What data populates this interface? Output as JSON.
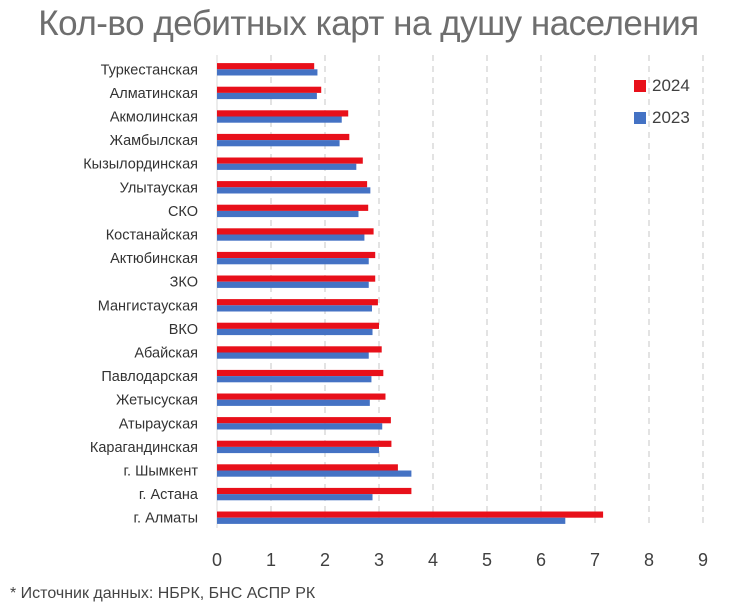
{
  "chart_data": {
    "type": "bar",
    "orientation": "horizontal",
    "title": "Кол-во дебитных карт на душу населения",
    "categories": [
      "Туркестанская",
      "Алматинская",
      "Акмолинская",
      "Жамбылская",
      "Кызылординская",
      "Улытауская",
      "СКО",
      "Костанайская",
      "Актюбинская",
      "ЗКО",
      "Мангистауская",
      "ВКО",
      "Абайская",
      "Павлодарская",
      "Жетысуская",
      "Атырауская",
      "Карагандинская",
      "г. Шымкент",
      "г. Астана",
      "г. Алматы"
    ],
    "series": [
      {
        "name": "2024",
        "color": "#e8101a",
        "values": [
          1.8,
          1.93,
          2.43,
          2.45,
          2.7,
          2.78,
          2.8,
          2.9,
          2.93,
          2.93,
          2.98,
          3.0,
          3.05,
          3.08,
          3.12,
          3.22,
          3.23,
          3.35,
          3.6,
          7.15
        ]
      },
      {
        "name": "2023",
        "color": "#4472c4",
        "values": [
          1.86,
          1.85,
          2.31,
          2.27,
          2.58,
          2.84,
          2.62,
          2.73,
          2.81,
          2.81,
          2.87,
          2.88,
          2.81,
          2.86,
          2.83,
          3.06,
          3.0,
          3.6,
          2.88,
          6.45
        ]
      }
    ],
    "xlim": [
      0,
      9
    ],
    "xticks": [
      "0",
      "1",
      "2",
      "3",
      "4",
      "5",
      "6",
      "7",
      "8",
      "9"
    ],
    "grid": "vertical dashed",
    "legend_position": "top-right"
  },
  "source_note": "* Источник данных: НБРК, БНС АСПР РК"
}
